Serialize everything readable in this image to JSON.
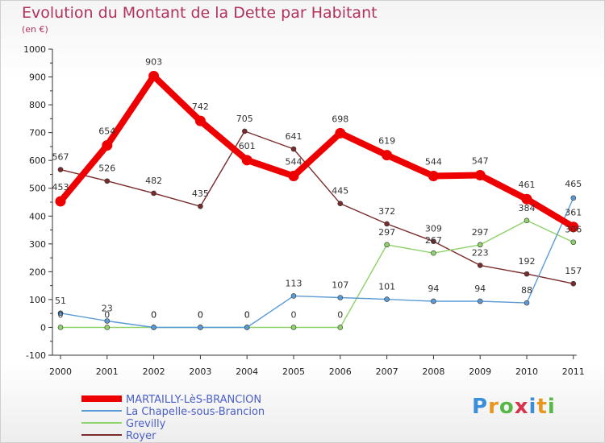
{
  "header": {
    "title": "Evolution du Montant de la Dette par Habitant",
    "subtitle": "(en €)"
  },
  "logo": {
    "text": "Proxiti",
    "letters": [
      "P",
      "r",
      "o",
      "x",
      "i",
      "t",
      "i"
    ],
    "colors": [
      "#3b8fd9",
      "#e8961e",
      "#57b847",
      "#d9324b",
      "#3b8fd9",
      "#e8961e",
      "#57b847"
    ]
  },
  "chart_data": {
    "type": "line",
    "title": "Evolution du Montant de la Dette par Habitant",
    "subtitle": "(en €)",
    "x": [
      "2000",
      "2001",
      "2002",
      "2003",
      "2004",
      "2005",
      "2006",
      "2007",
      "2008",
      "2009",
      "2010",
      "2011"
    ],
    "ylim": [
      -100,
      1000
    ],
    "yticks": [
      -100,
      0,
      100,
      200,
      300,
      400,
      500,
      600,
      700,
      800,
      900,
      1000
    ],
    "grid": false,
    "legend_position": "bottom-left",
    "series": [
      {
        "name": "MARTAILLY-LèS-BRANCION",
        "color": "#ee0000",
        "emphasis": true,
        "values": [
          453,
          654,
          903,
          742,
          601,
          544,
          698,
          619,
          544,
          547,
          461,
          361
        ],
        "labels": [
          "453",
          "654",
          "903",
          "742",
          "601",
          "544",
          "698",
          "619",
          "544",
          "547",
          "461",
          "361"
        ]
      },
      {
        "name": "La Chapelle-sous-Brancion",
        "color": "#5a9bd5",
        "values": [
          51,
          23,
          0,
          0,
          0,
          113,
          107,
          101,
          94,
          94,
          88,
          465
        ],
        "labels": [
          "51",
          "23",
          "0",
          "0",
          "0",
          "113",
          "107",
          "101",
          "94",
          "94",
          "88",
          "465"
        ]
      },
      {
        "name": "Grevilly",
        "color": "#8fd16a",
        "values": [
          0,
          0,
          0,
          0,
          0,
          0,
          0,
          297,
          267,
          297,
          384,
          306
        ],
        "labels": [
          "0",
          "0",
          "0",
          "0",
          "0",
          "0",
          "0",
          "297",
          "267",
          "297",
          "384",
          "306"
        ]
      },
      {
        "name": "Royer",
        "color": "#7a2b2b",
        "values": [
          567,
          526,
          482,
          435,
          null,
          641,
          445,
          372,
          309,
          223,
          192,
          157
        ],
        "labels": [
          "567",
          "526",
          "482",
          "435",
          "705",
          "641",
          "445",
          "372",
          "309",
          "223",
          "192",
          "157"
        ],
        "segment_points": [
          [
            0,
            567
          ],
          [
            1,
            526
          ],
          [
            2,
            482
          ],
          [
            3,
            435
          ],
          [
            3.95,
            705
          ],
          [
            5,
            641
          ],
          [
            6,
            445
          ],
          [
            7,
            372
          ],
          [
            8,
            309
          ],
          [
            9,
            223
          ],
          [
            10,
            192
          ],
          [
            11,
            157
          ]
        ]
      }
    ]
  }
}
